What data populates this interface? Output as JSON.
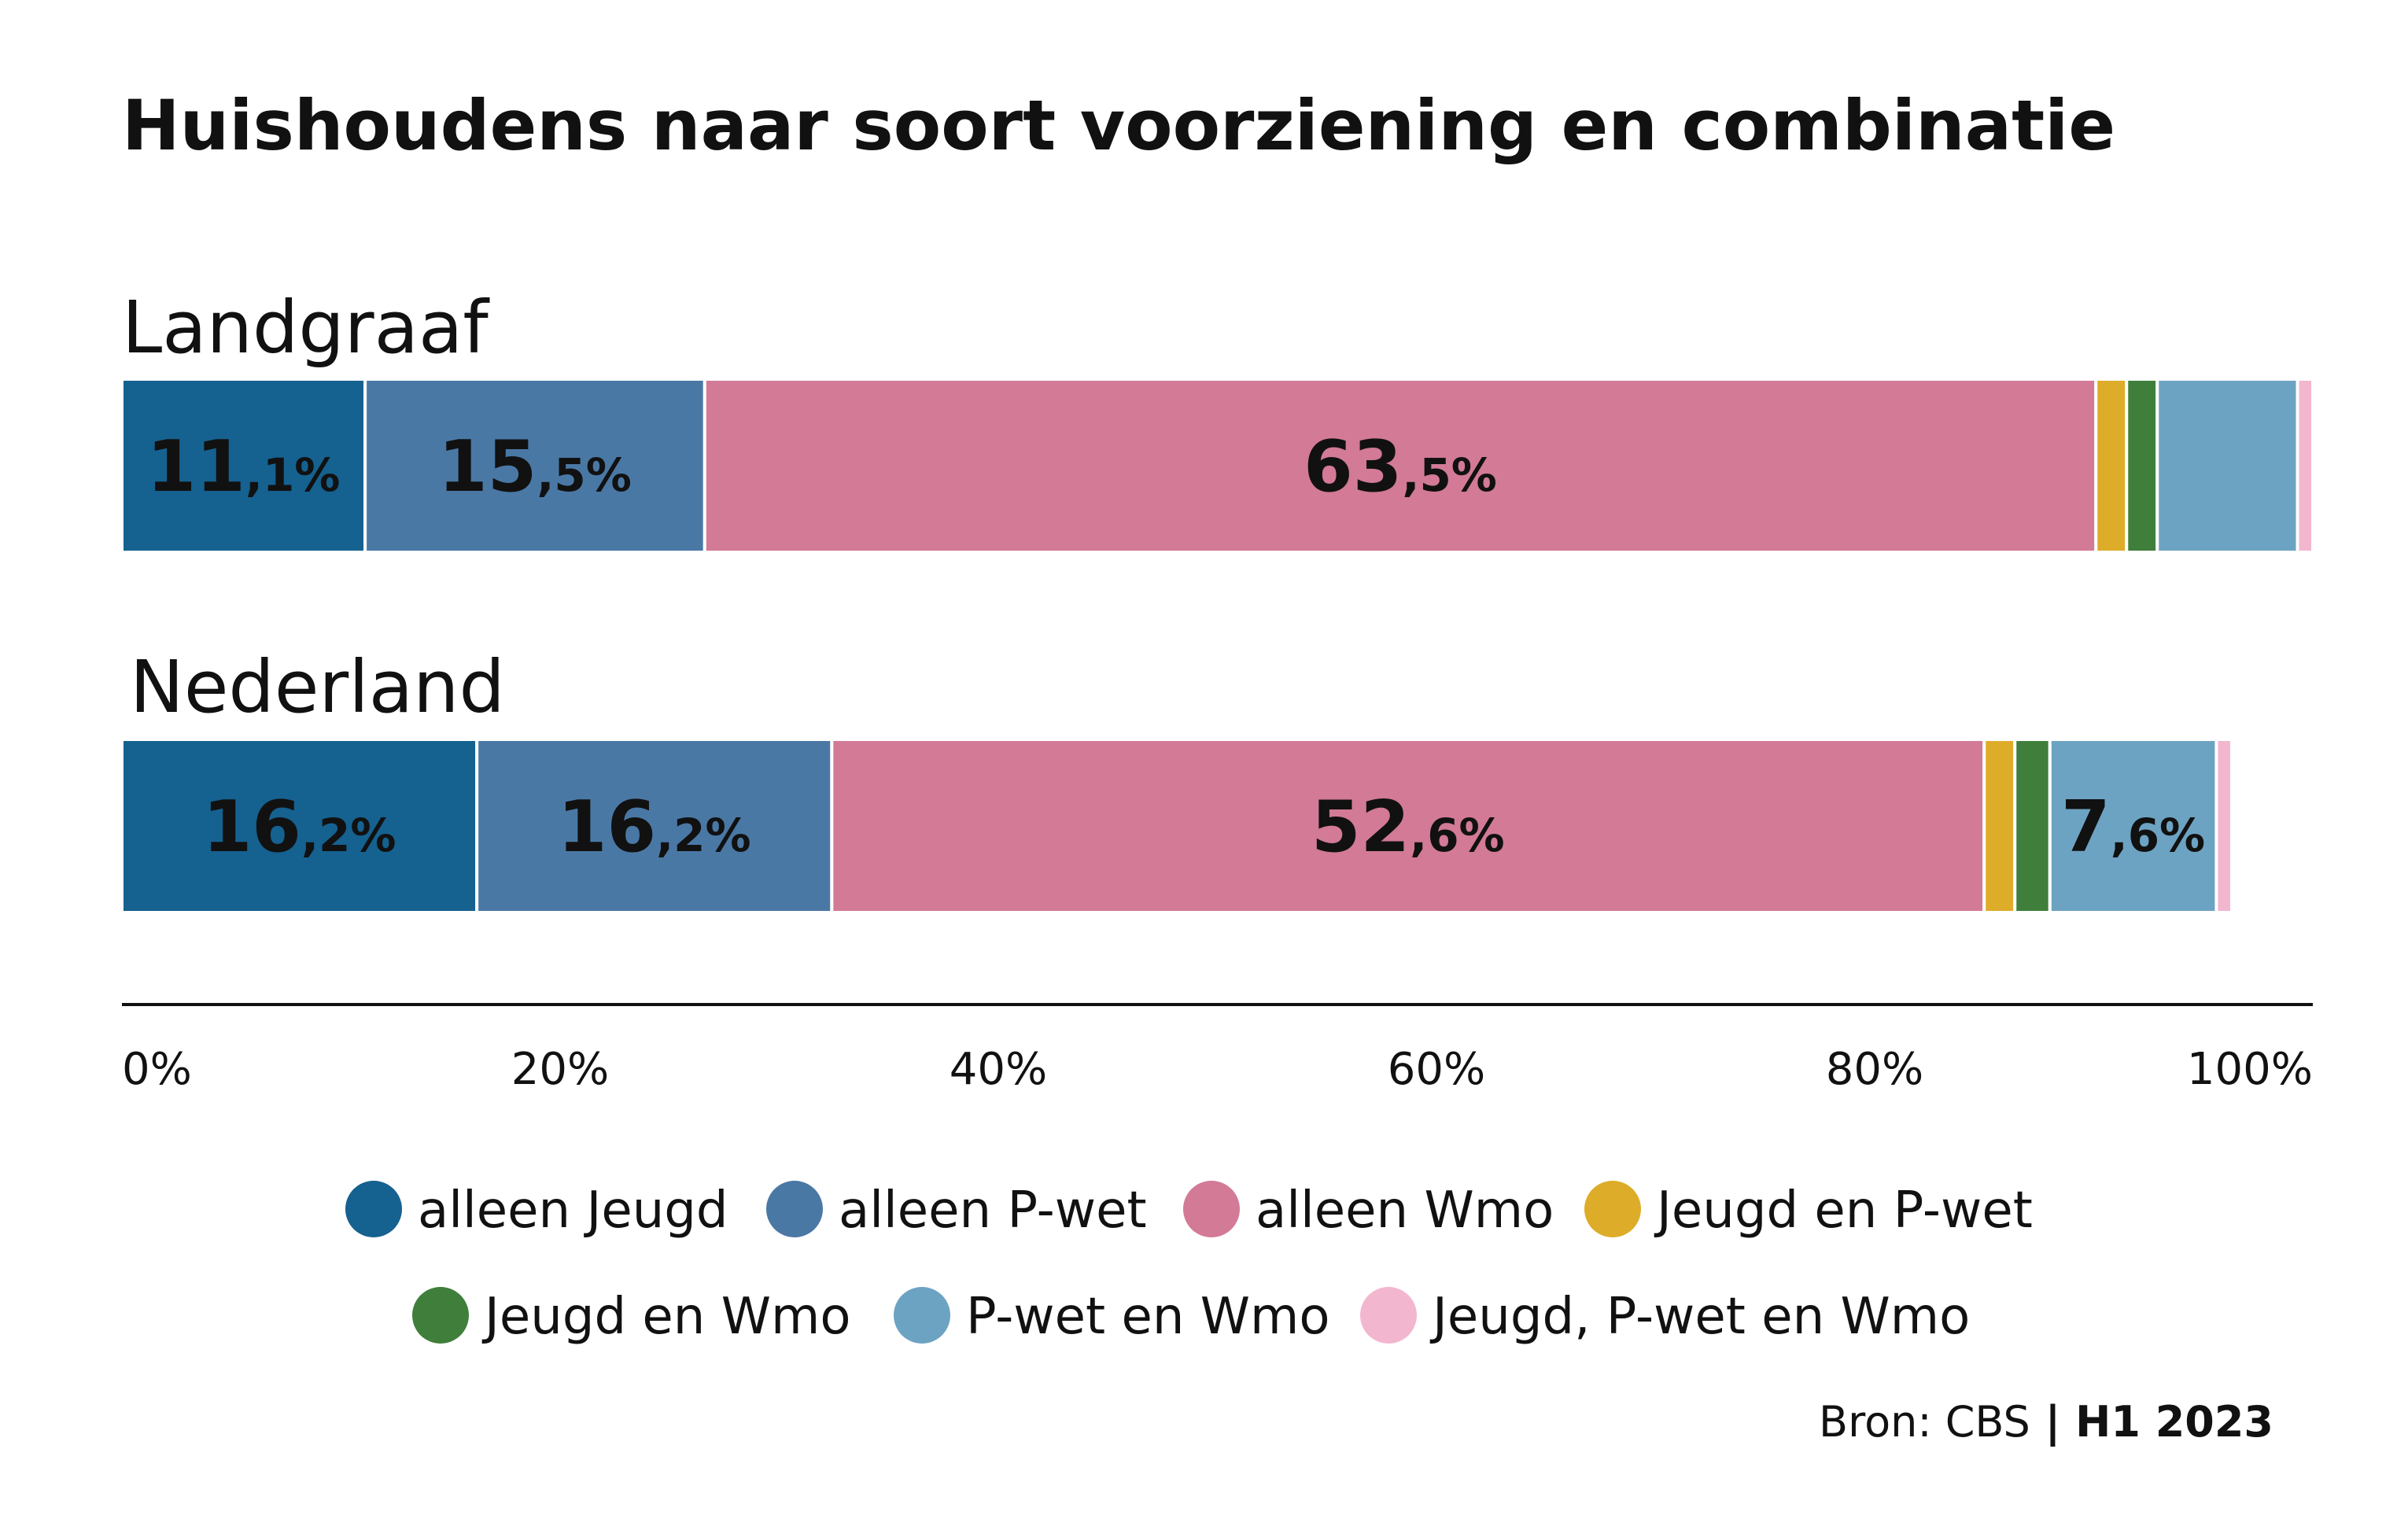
{
  "chart_data": {
    "type": "bar",
    "orientation": "horizontal",
    "stacked": true,
    "title": "Huishoudens naar soort voorziening en combinatie",
    "categories": [
      "Landgraaf",
      "Nederland"
    ],
    "series": [
      {
        "name": "alleen Jeugd",
        "color": "#156190",
        "values": [
          11.1,
          16.2
        ],
        "labels": [
          "11,1%",
          "16,2%"
        ]
      },
      {
        "name": "alleen P-wet",
        "color": "#4a78a5",
        "values": [
          15.5,
          16.2
        ],
        "labels": [
          "15,5%",
          "16,2%"
        ]
      },
      {
        "name": "alleen Wmo",
        "color": "#d27a96",
        "values": [
          63.5,
          52.6
        ],
        "labels": [
          "63,5%",
          "52,6%"
        ]
      },
      {
        "name": "Jeugd en P-wet",
        "color": "#ddac28",
        "values": [
          1.4,
          1.4
        ],
        "labels": [
          "",
          ""
        ]
      },
      {
        "name": "Jeugd en Wmo",
        "color": "#3f7f3b",
        "values": [
          1.4,
          1.6
        ],
        "labels": [
          "",
          ""
        ]
      },
      {
        "name": "P-wet en Wmo",
        "color": "#6da3c2",
        "values": [
          6.4,
          7.6
        ],
        "labels": [
          "",
          "7,6%"
        ]
      },
      {
        "name": "Jeugd, P-wet en Wmo",
        "color": "#f3b6cf",
        "values": [
          0.7,
          0.7
        ],
        "labels": [
          "",
          ""
        ]
      }
    ],
    "x_ticks": [
      "0%",
      "20%",
      "40%",
      "60%",
      "80%",
      "100%"
    ],
    "xlim": [
      0,
      100
    ],
    "grid": false,
    "legend_position": "bottom"
  },
  "source": {
    "prefix": "Bron: CBS",
    "separator": " | ",
    "period": "H1 2023"
  }
}
